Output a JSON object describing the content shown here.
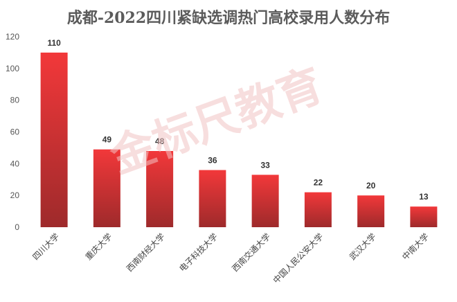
{
  "chart_data": {
    "type": "bar",
    "title": "成都-2022四川紧缺选调热门高校录用人数分布",
    "categories": [
      "四川大学",
      "重庆大学",
      "西南财经大学",
      "电子科技大学",
      "西南交通大学",
      "中国人民公安大学",
      "武汉大学",
      "中南大学"
    ],
    "values": [
      110,
      49,
      48,
      36,
      33,
      22,
      20,
      13
    ],
    "ylim": [
      0,
      120
    ],
    "yticks": [
      0,
      20,
      40,
      60,
      80,
      100,
      120
    ],
    "xlabel": "",
    "ylabel": "",
    "grid": false,
    "legend": "none",
    "bar_color_top": "#f2383a",
    "bar_color_bottom": "#9e2a2b"
  },
  "watermark_text": "金标尺教育"
}
